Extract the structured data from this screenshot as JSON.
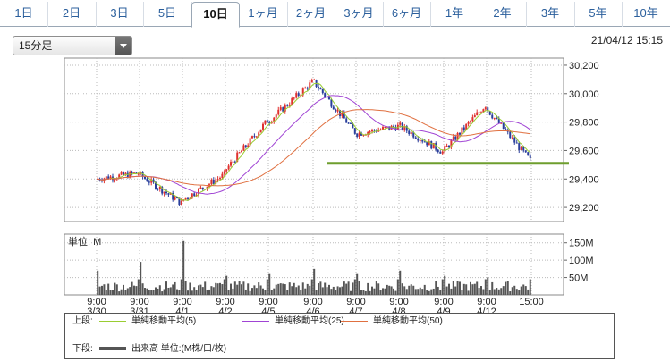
{
  "tabs": [
    {
      "label": "1日",
      "active": false
    },
    {
      "label": "2日",
      "active": false
    },
    {
      "label": "3日",
      "active": false
    },
    {
      "label": "5日",
      "active": false
    },
    {
      "label": "10日",
      "active": true
    },
    {
      "label": "1ヶ月",
      "active": false
    },
    {
      "label": "2ヶ月",
      "active": false
    },
    {
      "label": "3ヶ月",
      "active": false
    },
    {
      "label": "6ヶ月",
      "active": false
    },
    {
      "label": "1年",
      "active": false
    },
    {
      "label": "2年",
      "active": false
    },
    {
      "label": "3年",
      "active": false
    },
    {
      "label": "5年",
      "active": false
    },
    {
      "label": "10年",
      "active": false
    }
  ],
  "interval_select": {
    "value": "15分足"
  },
  "timestamp": "21/04/12 15:15",
  "colors": {
    "up": "#e0312f",
    "down": "#2a3f9c",
    "ma5": "#9acd32",
    "ma25": "#a044d4",
    "ma50": "#e07040",
    "support": "#6e9e2e",
    "volume": "#555555"
  },
  "chart_data": {
    "type": "candlestick",
    "price_axis": {
      "ticks": [
        29200,
        29400,
        29600,
        29800,
        30000,
        30200
      ],
      "tick_labels": [
        "29,200",
        "29,400",
        "29,600",
        "29,800",
        "30,000",
        "30,200"
      ],
      "range": [
        29100,
        30250
      ]
    },
    "volume_axis": {
      "label": "単位: M",
      "ticks": [
        50,
        100,
        150
      ],
      "tick_labels": [
        "50M",
        "100M",
        "150M"
      ],
      "range": [
        0,
        175
      ]
    },
    "x_time_labels": [
      "9:00",
      "9:00",
      "9:00",
      "9:00",
      "9:00",
      "9:00",
      "9:00",
      "9:00",
      "9:00",
      "9:00",
      "15:00"
    ],
    "x_date_labels": [
      "3/30",
      "3/31",
      "4/1",
      "4/2",
      "4/5",
      "4/6",
      "4/7",
      "4/8",
      "4/9",
      "4/12"
    ],
    "session_close": [
      29440,
      29230,
      29430,
      29810,
      30080,
      29730,
      29770,
      29590,
      29920,
      29530
    ],
    "support_level": 29510,
    "volume_open_spike": [
      70,
      95,
      155,
      55,
      60,
      75,
      60,
      70,
      55,
      50
    ]
  },
  "legend": {
    "upper_label": "上段:",
    "lower_label": "下段:",
    "ma5": "単純移動平均(5)",
    "ma25": "単純移動平均(25)",
    "ma50": "単純移動平均(50)",
    "volume": "出来高 単位:(M株/口/枚)"
  }
}
